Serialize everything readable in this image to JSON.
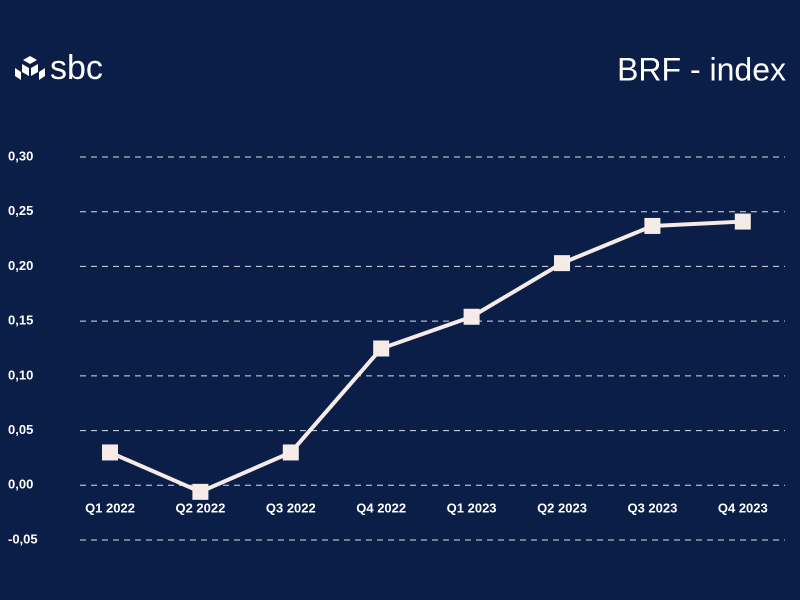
{
  "brand": "sbc",
  "chart_data": {
    "type": "line",
    "title": "BRF - index",
    "categories": [
      "Q1 2022",
      "Q2 2022",
      "Q3 2022",
      "Q4 2022",
      "Q1 2023",
      "Q2 2023",
      "Q3 2023",
      "Q4 2023"
    ],
    "values": [
      0.03,
      -0.006,
      0.03,
      0.125,
      0.154,
      0.203,
      0.237,
      0.241
    ],
    "color": "#f6ebe7",
    "ylim": [
      -0.05,
      0.3
    ],
    "yticks": [
      {
        "value": -0.05,
        "label": "-0,05"
      },
      {
        "value": 0,
        "label": "0,00"
      },
      {
        "value": 0.05,
        "label": "0,05"
      },
      {
        "value": 0.1,
        "label": "0,10"
      },
      {
        "value": 0.15,
        "label": "0,15"
      },
      {
        "value": 0.2,
        "label": "0,20"
      },
      {
        "value": 0.25,
        "label": "0,25"
      },
      {
        "value": 0.3,
        "label": "0,30"
      }
    ],
    "grid": true
  }
}
